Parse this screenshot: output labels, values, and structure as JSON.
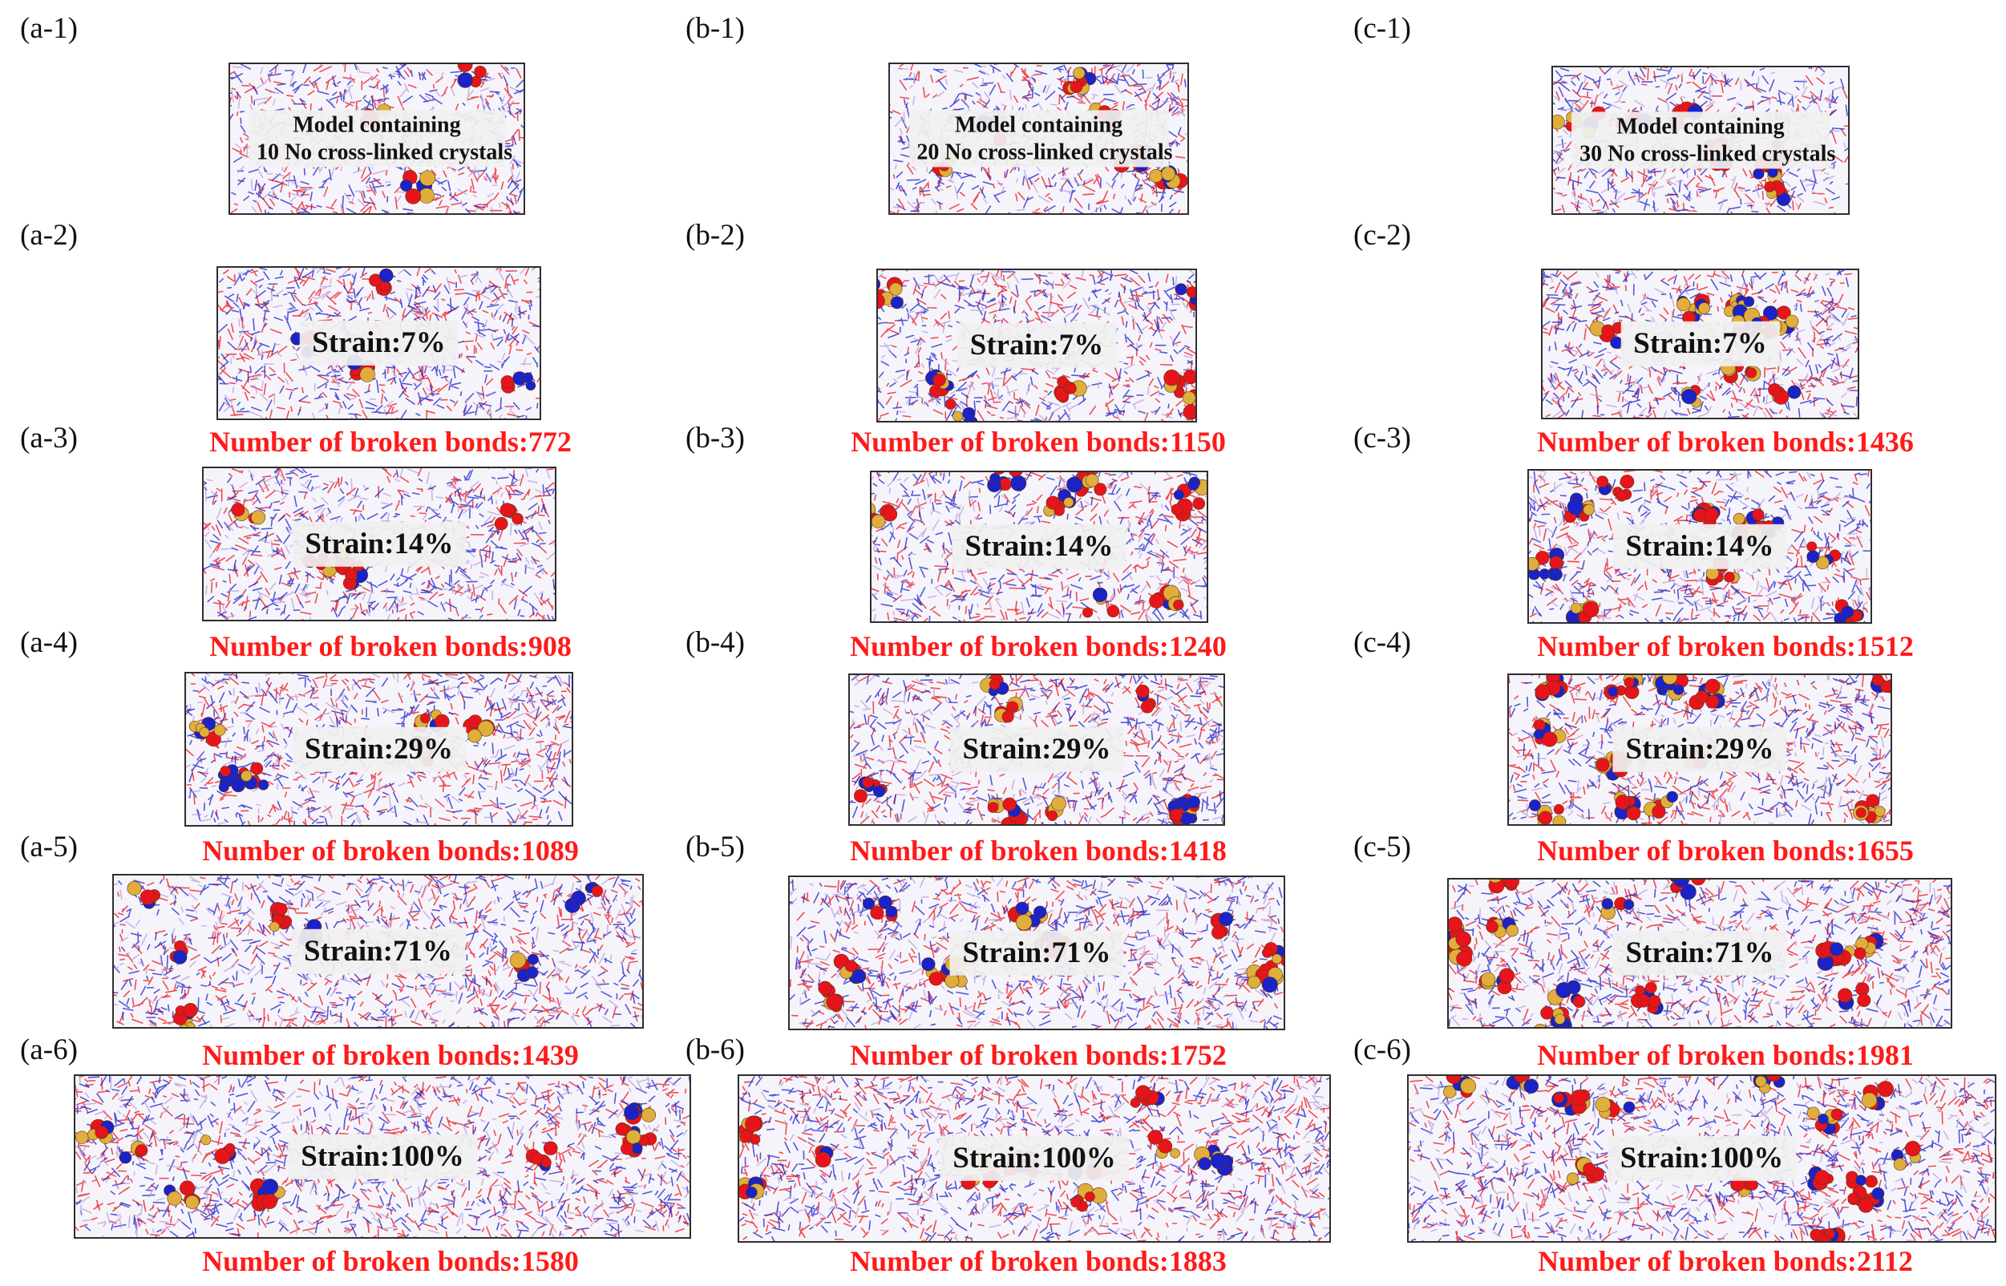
{
  "columns": [
    {
      "id": "a",
      "panels": [
        {
          "label": "(a-1)",
          "type": "model",
          "model_line1": "Model containing",
          "model_line2": "10 No cross-linked crystals"
        },
        {
          "label": "(a-2)",
          "type": "strain",
          "strain": "Strain:7%",
          "bonds": "Number of broken  bonds:772"
        },
        {
          "label": "(a-3)",
          "type": "strain",
          "strain": "Strain:14%",
          "bonds": "Number of broken  bonds:908"
        },
        {
          "label": "(a-4)",
          "type": "strain",
          "strain": "Strain:29%",
          "bonds": "Number of broken  bonds:1089"
        },
        {
          "label": "(a-5)",
          "type": "strain",
          "strain": "Strain:71%",
          "bonds": "Number of broken  bonds:1439"
        },
        {
          "label": "(a-6)",
          "type": "strain",
          "strain": "Strain:100%",
          "bonds": "Number of broken  bonds:1580"
        }
      ]
    },
    {
      "id": "b",
      "panels": [
        {
          "label": "(b-1)",
          "type": "model",
          "model_line1": "Model containing",
          "model_line2": "20 No cross-linked crystals"
        },
        {
          "label": "(b-2)",
          "type": "strain",
          "strain": "Strain:7%",
          "bonds": "Number of broken  bonds:1150"
        },
        {
          "label": "(b-3)",
          "type": "strain",
          "strain": "Strain:14%",
          "bonds": "Number of broken  bonds:1240"
        },
        {
          "label": "(b-4)",
          "type": "strain",
          "strain": "Strain:29%",
          "bonds": "Number of broken  bonds:1418"
        },
        {
          "label": "(b-5)",
          "type": "strain",
          "strain": "Strain:71%",
          "bonds": "Number of broken  bonds:1752"
        },
        {
          "label": "(b-6)",
          "type": "strain",
          "strain": "Strain:100%",
          "bonds": "Number of broken  bonds:1883"
        }
      ]
    },
    {
      "id": "c",
      "panels": [
        {
          "label": "(c-1)",
          "type": "model",
          "model_line1": "Model containing",
          "model_line2": "30 No cross-linked crystals"
        },
        {
          "label": "(c-2)",
          "type": "strain",
          "strain": "Strain:7%",
          "bonds": "Number of broken  bonds:1436"
        },
        {
          "label": "(c-3)",
          "type": "strain",
          "strain": "Strain:14%",
          "bonds": "Number of broken  bonds:1512"
        },
        {
          "label": "(c-4)",
          "type": "strain",
          "strain": "Strain:29%",
          "bonds": "Number of broken  bonds:1655"
        },
        {
          "label": "(c-5)",
          "type": "strain",
          "strain": "Strain:71%",
          "bonds": "Number of broken  bonds:1981"
        },
        {
          "label": "(c-6)",
          "type": "strain",
          "strain": "Strain:100%",
          "bonds": "Number of broken  bonds:2112"
        }
      ]
    }
  ],
  "colors": {
    "bond_text": "#ff1a1a",
    "atom_red": "#e8141b",
    "atom_blue": "#1b22c8",
    "atom_gold": "#e0ae3c",
    "frame": "#2e2e2e"
  }
}
